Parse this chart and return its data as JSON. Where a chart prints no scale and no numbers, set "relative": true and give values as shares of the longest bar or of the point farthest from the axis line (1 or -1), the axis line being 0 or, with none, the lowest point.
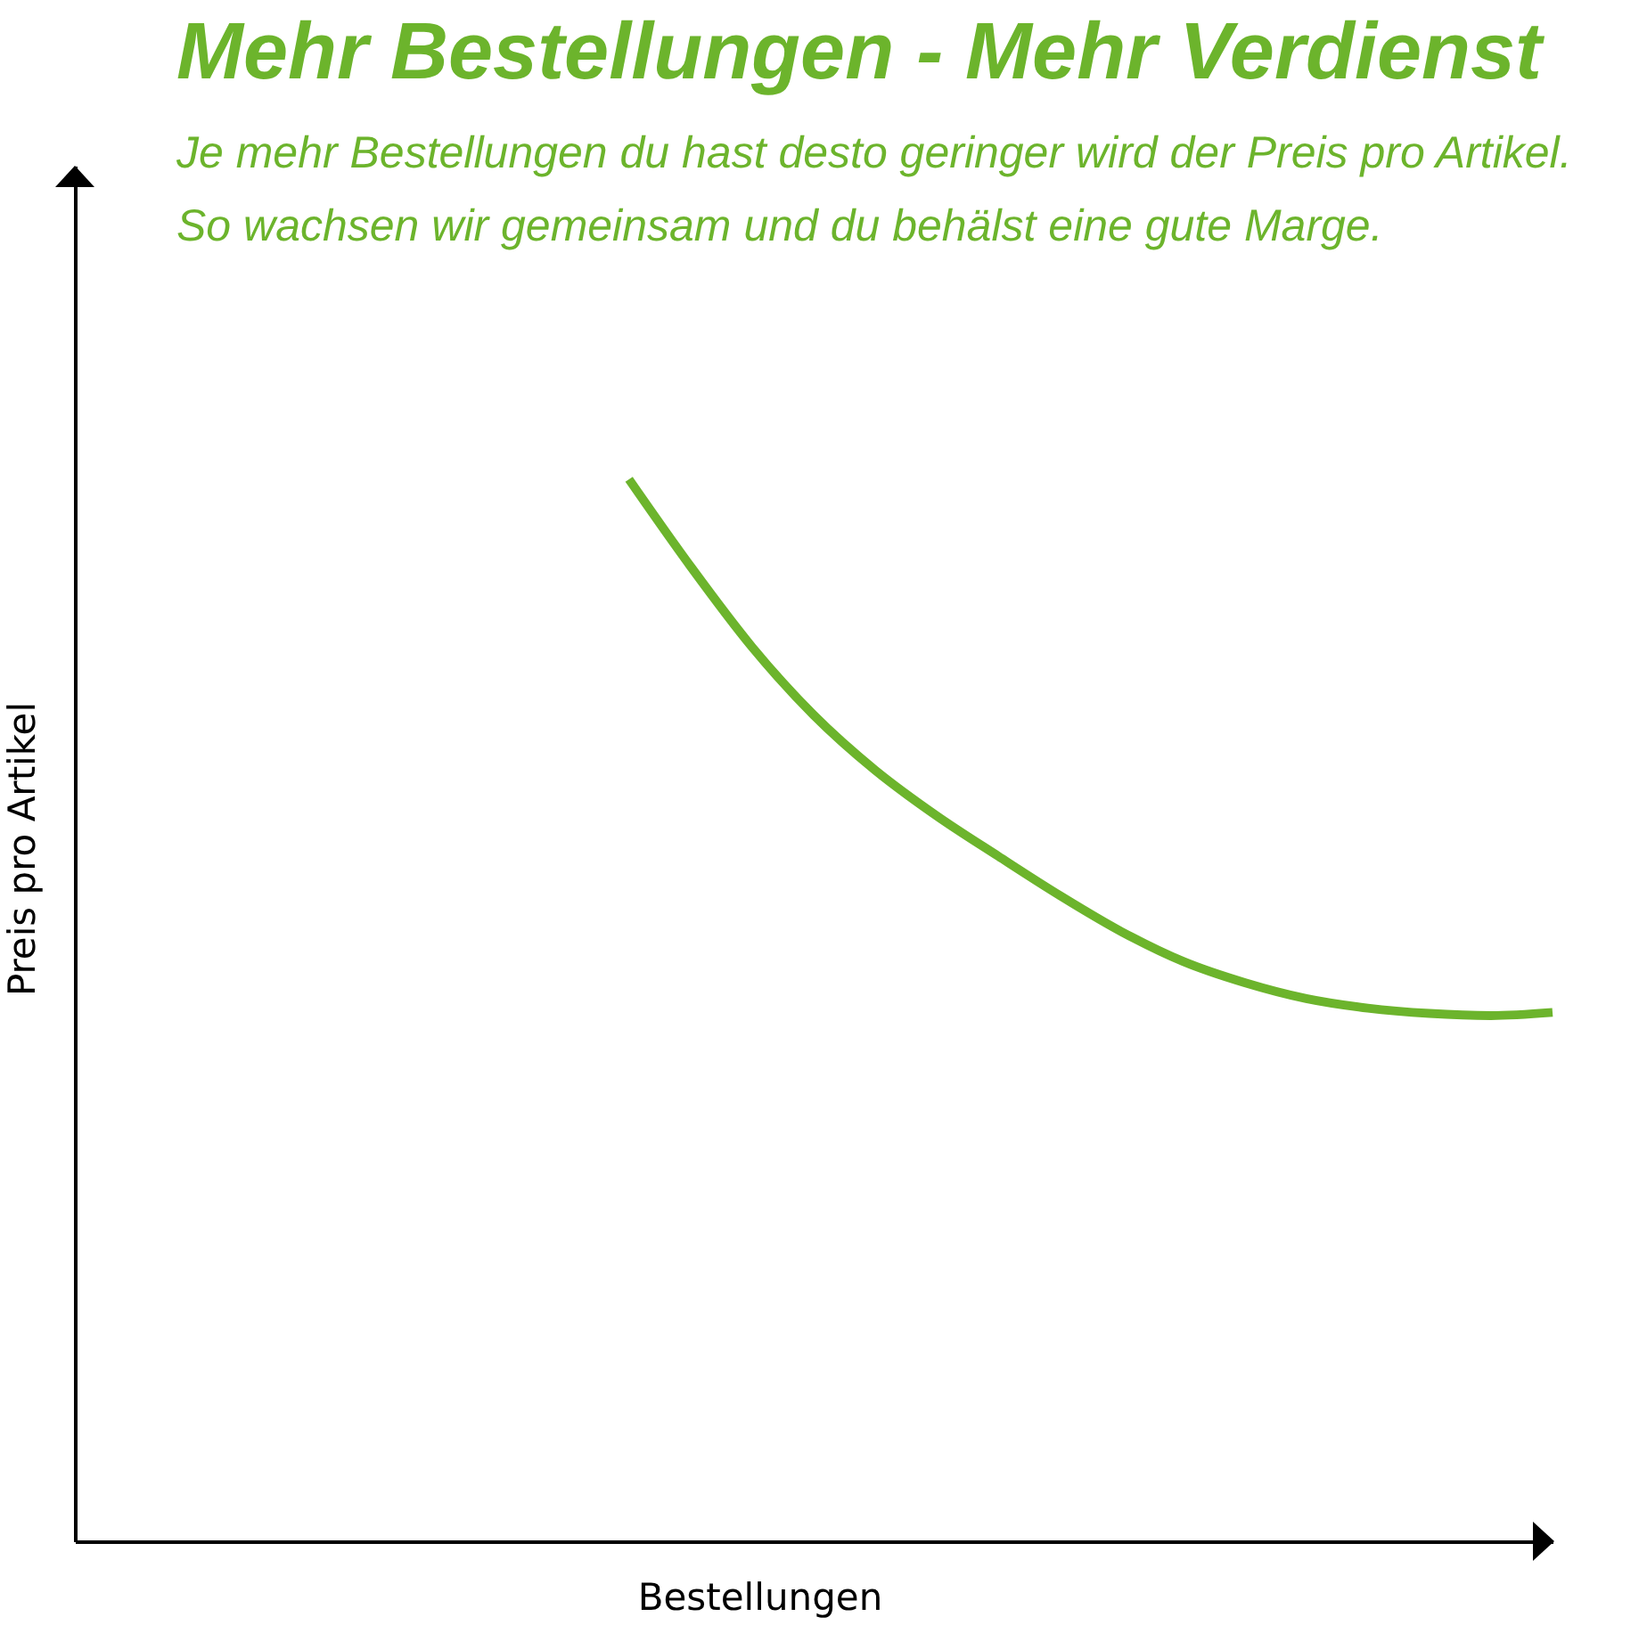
{
  "chart_data": {
    "type": "line",
    "title": "Mehr Bestellungen - Mehr Verdienst",
    "subtitle": "Je mehr Bestellungen du hast desto geringer wird der Preis pro Artikel.\nSo wachsen wir gemeinsam und du behälst eine gute Marge.",
    "xlabel": "Bestellungen",
    "ylabel": "Preis pro Artikel",
    "categories": [
      null,
      null,
      null,
      null,
      null,
      null,
      null,
      null,
      null,
      null,
      null,
      null,
      null,
      null,
      null,
      null,
      null,
      null,
      null,
      null,
      null,
      null,
      null,
      null,
      null
    ],
    "series": [
      {
        "color": "#6cb42c",
        "values": [
          null,
          null,
          null,
          null,
          null,
          null,
          null,
          null,
          null,
          1,
          0.918,
          0.842,
          0.778,
          0.726,
          0.683,
          0.645,
          0.608,
          0.574,
          0.546,
          0.526,
          0.511,
          0.502,
          0.497,
          0.495,
          0.498
        ]
      }
    ],
    "relative": true,
    "marker": "none",
    "line_style": "solid"
  }
}
